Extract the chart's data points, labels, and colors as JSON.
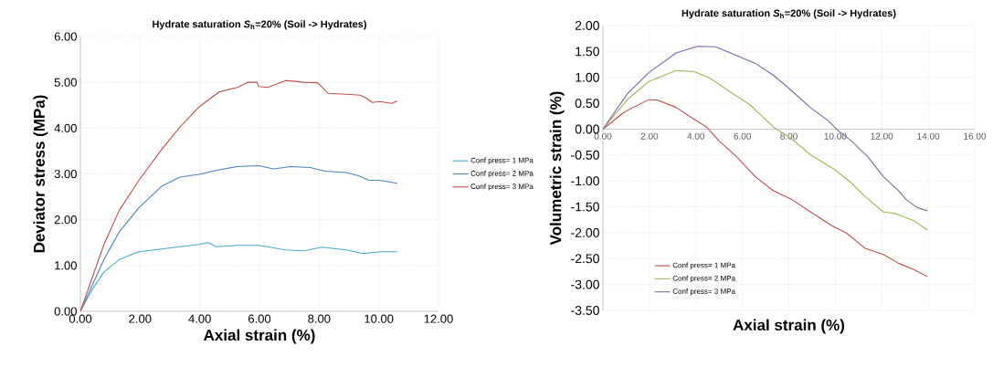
{
  "chart_data": [
    {
      "type": "line",
      "title": "Hydrate saturation *S*$_{h}$=20% (Soil -> Hydrates)",
      "xlabel": "Axial strain (%)",
      "ylabel": "Deviator stress (MPa)",
      "xlim": [
        0,
        12
      ],
      "ylim": [
        0,
        6
      ],
      "xticks": [
        {
          "value": 0,
          "label": "0.00"
        },
        {
          "value": 2,
          "label": "2.00"
        },
        {
          "value": 4,
          "label": "4.00"
        },
        {
          "value": 6,
          "label": "6.00"
        },
        {
          "value": 8,
          "label": "8.00"
        },
        {
          "value": 10,
          "label": "10.00"
        },
        {
          "value": 12,
          "label": "12.00"
        }
      ],
      "yticks": [
        {
          "value": 0,
          "label": "0.00"
        },
        {
          "value": 1,
          "label": "1.00"
        },
        {
          "value": 2,
          "label": "2.00"
        },
        {
          "value": 3,
          "label": "3.00"
        },
        {
          "value": 4,
          "label": "4.00"
        },
        {
          "value": 5,
          "label": "5.00"
        },
        {
          "value": 6,
          "label": "6.00"
        }
      ],
      "grid": true,
      "legend": "right",
      "series": [
        {
          "name": "Conf press= 1 MPa",
          "color": "#4bacc6",
          "x": [
            0,
            0.39,
            0.79,
            1.3,
            1.96,
            2.72,
            3.33,
            3.97,
            4.29,
            4.55,
            5.26,
            5.97,
            6.88,
            7.49,
            8.1,
            8.9,
            9.47,
            10.03,
            10.62
          ],
          "values": [
            0,
            0.47,
            0.86,
            1.13,
            1.3,
            1.36,
            1.41,
            1.46,
            1.5,
            1.41,
            1.44,
            1.44,
            1.34,
            1.32,
            1.4,
            1.34,
            1.26,
            1.3,
            1.3
          ]
        },
        {
          "name": "Conf press= 2 MPa",
          "color": "#4f81bd",
          "x": [
            0,
            0.79,
            1.3,
            1.96,
            2.72,
            3.33,
            3.97,
            4.65,
            5.26,
            5.97,
            6.48,
            7.04,
            7.7,
            8.2,
            8.9,
            9.32,
            9.68,
            10.03,
            10.49,
            10.62
          ],
          "values": [
            0,
            1.13,
            1.73,
            2.26,
            2.73,
            2.93,
            2.99,
            3.09,
            3.16,
            3.18,
            3.11,
            3.16,
            3.14,
            3.06,
            3.03,
            2.96,
            2.86,
            2.86,
            2.81,
            2.79
          ]
        },
        {
          "name": "Conf press= 3 MPa",
          "color": "#c0504d",
          "x": [
            0,
            0.79,
            1.3,
            1.96,
            2.72,
            3.33,
            3.97,
            4.65,
            5.26,
            5.6,
            5.92,
            5.97,
            6.28,
            6.88,
            7.49,
            7.95,
            8.3,
            8.9,
            9.37,
            9.57,
            9.78,
            10.03,
            10.44,
            10.62
          ],
          "values": [
            0,
            1.46,
            2.2,
            2.86,
            3.53,
            4.02,
            4.46,
            4.79,
            4.89,
            5.0,
            5.0,
            4.91,
            4.89,
            5.04,
            5.0,
            4.99,
            4.76,
            4.74,
            4.72,
            4.66,
            4.56,
            4.58,
            4.54,
            4.59
          ]
        }
      ]
    },
    {
      "type": "line",
      "title": "Hydrate saturation *S*$_{h}$=20% (Soil -> Hydrates)",
      "xlabel": "Axial strain (%)",
      "ylabel": "Volumetric strain (%)",
      "xlim": [
        0,
        16
      ],
      "ylim": [
        -3.5,
        2
      ],
      "xticks": [
        {
          "value": 0,
          "label": "0.00"
        },
        {
          "value": 2,
          "label": "2.00"
        },
        {
          "value": 4,
          "label": "4.00"
        },
        {
          "value": 6,
          "label": "6.00"
        },
        {
          "value": 8,
          "label": "8.00"
        },
        {
          "value": 10,
          "label": "10.00"
        },
        {
          "value": 12,
          "label": "12.00"
        },
        {
          "value": 14,
          "label": "14.00"
        },
        {
          "value": 16,
          "label": "16.00"
        }
      ],
      "yticks": [
        {
          "value": -3.5,
          "label": "-3.50"
        },
        {
          "value": -3,
          "label": "-3.00"
        },
        {
          "value": -2.5,
          "label": "-2.50"
        },
        {
          "value": -2,
          "label": "-2.00"
        },
        {
          "value": -1.5,
          "label": "-1.50"
        },
        {
          "value": -1,
          "label": "-1.00"
        },
        {
          "value": -0.5,
          "label": "-0.50"
        },
        {
          "value": 0,
          "label": "0.00"
        },
        {
          "value": 0.5,
          "label": "0.50"
        },
        {
          "value": 1,
          "label": "1.00"
        },
        {
          "value": 1.5,
          "label": "1.50"
        },
        {
          "value": 2,
          "label": "2.00"
        }
      ],
      "grid": true,
      "legend": "bottom left",
      "series": [
        {
          "name": "Conf press= 1 MPa",
          "color": "#c0504d",
          "x": [
            0,
            0.92,
            1.97,
            2.36,
            3.15,
            3.93,
            4.46,
            4.98,
            5.77,
            6.56,
            7.34,
            8.13,
            9.05,
            9.84,
            10.49,
            11.28,
            12.07,
            12.72,
            13.38,
            13.97
          ],
          "values": [
            0,
            0.33,
            0.57,
            0.56,
            0.42,
            0.19,
            0.04,
            -0.22,
            -0.54,
            -0.92,
            -1.19,
            -1.36,
            -1.63,
            -1.86,
            -2.01,
            -2.3,
            -2.42,
            -2.59,
            -2.71,
            -2.85
          ]
        },
        {
          "name": "Conf press= 2 MPa",
          "color": "#9bbb59",
          "x": [
            0,
            1.05,
            1.97,
            3.15,
            3.93,
            4.59,
            5.51,
            6.3,
            7.34,
            8.13,
            8.92,
            9.97,
            10.62,
            11.28,
            12.07,
            12.59,
            13.38,
            13.97
          ],
          "values": [
            0,
            0.57,
            0.92,
            1.13,
            1.11,
            0.99,
            0.71,
            0.48,
            0.04,
            -0.19,
            -0.49,
            -0.78,
            -1.01,
            -1.3,
            -1.6,
            -1.63,
            -1.77,
            -1.95
          ]
        },
        {
          "name": "Conf press= 3 MPa",
          "color": "#8064a2",
          "x": [
            0,
            1.05,
            1.97,
            3.15,
            4.07,
            4.85,
            5.77,
            6.56,
            7.34,
            8.13,
            8.92,
            9.7,
            10.1,
            10.75,
            11.41,
            12.07,
            12.72,
            13.05,
            13.51,
            13.97
          ],
          "values": [
            0,
            0.68,
            1.09,
            1.47,
            1.6,
            1.59,
            1.42,
            1.27,
            1.04,
            0.74,
            0.42,
            0.16,
            -0.02,
            -0.25,
            -0.54,
            -0.92,
            -1.19,
            -1.36,
            -1.51,
            -1.58
          ]
        }
      ]
    }
  ]
}
